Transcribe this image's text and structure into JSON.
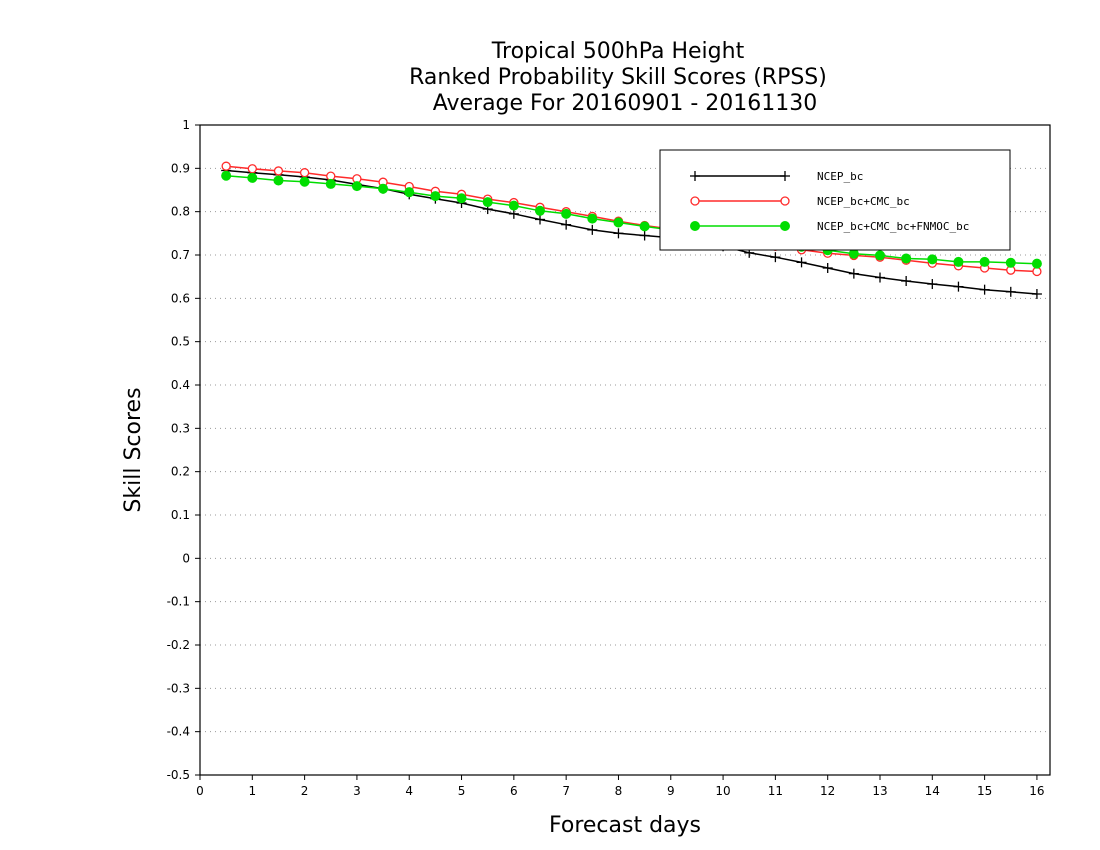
{
  "chart_data": {
    "type": "line",
    "title_lines": [
      "Tropical 500hPa Height",
      "Ranked Probability Skill Scores (RPSS)",
      "Average For 20160901 - 20161130"
    ],
    "xlabel": "Forecast days",
    "ylabel": "Skill Scores",
    "xlim": [
      0,
      16.25
    ],
    "ylim": [
      -0.5,
      1
    ],
    "x_ticks": [
      0,
      1,
      2,
      3,
      4,
      5,
      6,
      7,
      8,
      9,
      10,
      11,
      12,
      13,
      14,
      15,
      16
    ],
    "y_ticks": [
      -0.5,
      -0.4,
      -0.3,
      -0.2,
      -0.1,
      0,
      0.1,
      0.2,
      0.3,
      0.4,
      0.5,
      0.6,
      0.7,
      0.8,
      0.9,
      1
    ],
    "y_tick_labels": [
      "-0.5",
      "-0.4",
      "-0.3",
      "-0.2",
      "-0.1",
      "0",
      "0.1",
      "0.2",
      "0.3",
      "0.4",
      "0.5",
      "0.6",
      "0.7",
      "0.8",
      "0.9",
      "1"
    ],
    "grid": "horizontal dotted",
    "legend_position": "top-right",
    "x": [
      0.5,
      1,
      1.5,
      2,
      2.5,
      3,
      3.5,
      4,
      4.5,
      5,
      5.5,
      6,
      6.5,
      7,
      7.5,
      8,
      8.5,
      9,
      9.5,
      10,
      10.5,
      11,
      11.5,
      12,
      12.5,
      13,
      13.5,
      14,
      14.5,
      15,
      15.5,
      16
    ],
    "series": [
      {
        "name": "NCEP_bc",
        "color": "#000000",
        "marker": "plus",
        "values": [
          0.895,
          0.89,
          0.885,
          0.88,
          0.873,
          0.863,
          0.853,
          0.84,
          0.83,
          0.82,
          0.806,
          0.795,
          0.782,
          0.77,
          0.758,
          0.75,
          0.745,
          0.74,
          0.73,
          0.72,
          0.705,
          0.695,
          0.683,
          0.67,
          0.657,
          0.648,
          0.64,
          0.633,
          0.627,
          0.62,
          0.615,
          0.61
        ]
      },
      {
        "name": "NCEP_bc+CMC_bc",
        "color": "#ff2a2a",
        "marker": "open-circle",
        "values": [
          0.905,
          0.899,
          0.894,
          0.89,
          0.882,
          0.876,
          0.868,
          0.858,
          0.847,
          0.84,
          0.829,
          0.821,
          0.81,
          0.8,
          0.789,
          0.778,
          0.768,
          0.76,
          0.75,
          0.74,
          0.73,
          0.72,
          0.712,
          0.704,
          0.699,
          0.695,
          0.688,
          0.681,
          0.675,
          0.67,
          0.665,
          0.662
        ]
      },
      {
        "name": "NCEP_bc+CMC_bc+FNMOC_bc",
        "color": "#00dd00",
        "marker": "filled-circle",
        "values": [
          0.883,
          0.878,
          0.872,
          0.869,
          0.864,
          0.859,
          0.853,
          0.845,
          0.836,
          0.831,
          0.822,
          0.814,
          0.802,
          0.795,
          0.784,
          0.775,
          0.766,
          0.758,
          0.75,
          0.742,
          0.733,
          0.725,
          0.719,
          0.711,
          0.703,
          0.699,
          0.692,
          0.69,
          0.684,
          0.684,
          0.682,
          0.68
        ]
      }
    ]
  }
}
